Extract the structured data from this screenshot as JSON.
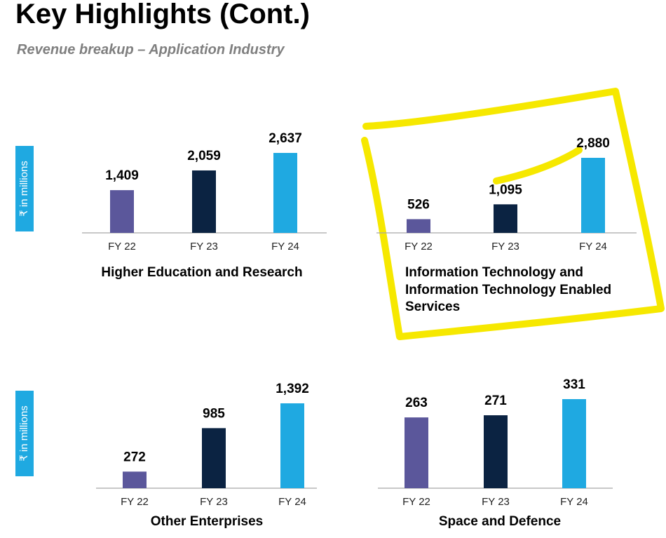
{
  "header": {
    "title": "Key Highlights (Cont.)",
    "subtitle": "Revenue breakup – Application Industry"
  },
  "chart_data": [
    {
      "type": "bar",
      "title": "Higher Education and Research",
      "y_label": "₹ in millions",
      "categories": [
        "FY 22",
        "FY 23",
        "FY 24"
      ],
      "values": [
        1409,
        2059,
        2637
      ],
      "value_labels": [
        "1,409",
        "2,059",
        "2,637"
      ],
      "colors": [
        "#5b579b",
        "#0b2342",
        "#1fa9e1"
      ]
    },
    {
      "type": "bar",
      "title": "Information Technology and Information Technology Enabled Services",
      "categories": [
        "FY 22",
        "FY 23",
        "FY 24"
      ],
      "values": [
        526,
        1095,
        2880
      ],
      "value_labels": [
        "526",
        "1,095",
        "2,880"
      ],
      "colors": [
        "#5b579b",
        "#0b2342",
        "#1fa9e1"
      ]
    },
    {
      "type": "bar",
      "title": "Other Enterprises",
      "y_label": "₹ in millions",
      "categories": [
        "FY 22",
        "FY 23",
        "FY 24"
      ],
      "values": [
        272,
        985,
        1392
      ],
      "value_labels": [
        "272",
        "985",
        "1,392"
      ],
      "colors": [
        "#5b579b",
        "#0b2342",
        "#1fa9e1"
      ]
    },
    {
      "type": "bar",
      "title": "Space and Defence",
      "categories": [
        "FY 22",
        "FY 23",
        "FY 24"
      ],
      "values": [
        263,
        271,
        331
      ],
      "colors": [
        "#5b579b",
        "#0b2342",
        "#1fa9e1"
      ]
    }
  ]
}
